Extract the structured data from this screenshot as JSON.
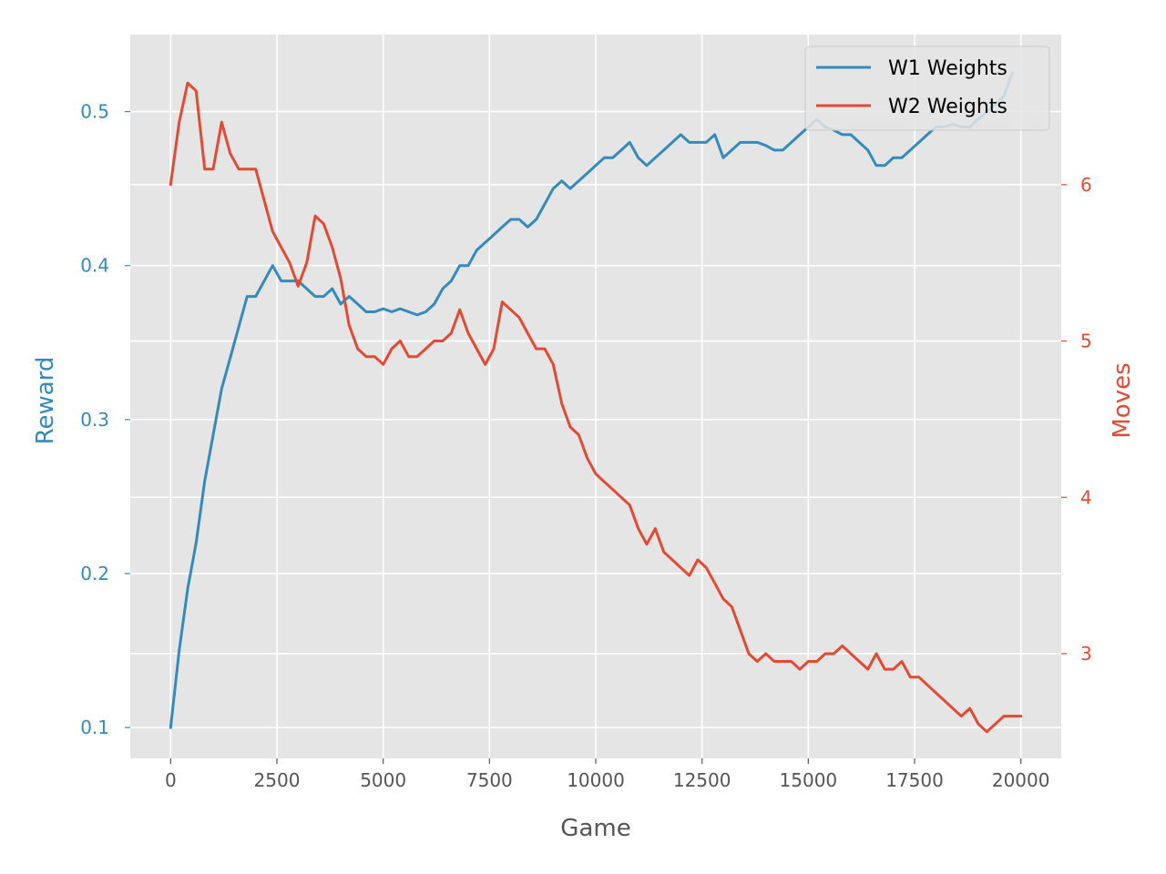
{
  "chart_data": {
    "type": "line",
    "x_axis": {
      "label": "Game",
      "ticks": [
        0,
        2500,
        5000,
        7500,
        10000,
        12500,
        15000,
        17500,
        20000
      ],
      "tick_labels": [
        "0",
        "2500",
        "5000",
        "7500",
        "10000",
        "12500",
        "15000",
        "17500",
        "20000"
      ],
      "range": [
        -950,
        20950
      ]
    },
    "y_left": {
      "label": "Reward",
      "ticks": [
        0.1,
        0.2,
        0.3,
        0.4,
        0.5
      ],
      "tick_labels": [
        "0.1",
        "0.2",
        "0.3",
        "0.4",
        "0.5"
      ],
      "range": [
        0.08,
        0.55
      ],
      "color": "#348ABD"
    },
    "y_right": {
      "label": "Moves",
      "ticks": [
        3,
        4,
        5,
        6
      ],
      "tick_labels": [
        "3",
        "4",
        "5",
        "6"
      ],
      "range": [
        2.33,
        6.96
      ],
      "color": "#E24A33"
    },
    "grid": true,
    "background": "#E5E5E5",
    "legend": {
      "placement": "top-right"
    },
    "series": [
      {
        "name": "W1 Weights",
        "axis": "left",
        "color": "#348ABD",
        "x": [
          0,
          200,
          400,
          600,
          800,
          1000,
          1200,
          1400,
          1600,
          1800,
          2000,
          2200,
          2400,
          2600,
          2800,
          3000,
          3200,
          3400,
          3600,
          3800,
          4000,
          4200,
          4400,
          4600,
          4800,
          5000,
          5200,
          5400,
          5600,
          5800,
          6000,
          6200,
          6400,
          6600,
          6800,
          7000,
          7200,
          7400,
          7600,
          7800,
          8000,
          8200,
          8400,
          8600,
          8800,
          9000,
          9200,
          9400,
          9600,
          9800,
          10000,
          10200,
          10400,
          10600,
          10800,
          11000,
          11200,
          11400,
          11600,
          11800,
          12000,
          12200,
          12400,
          12600,
          12800,
          13000,
          13200,
          13400,
          13600,
          13800,
          14000,
          14200,
          14400,
          14600,
          14800,
          15000,
          15200,
          15400,
          15600,
          15800,
          16000,
          16200,
          16400,
          16600,
          16800,
          17000,
          17200,
          17400,
          17600,
          17800,
          18000,
          18200,
          18400,
          18600,
          18800,
          19000,
          19200,
          19400,
          19600,
          19800
        ],
        "values": [
          0.1,
          0.15,
          0.19,
          0.22,
          0.26,
          0.29,
          0.32,
          0.34,
          0.36,
          0.38,
          0.38,
          0.39,
          0.4,
          0.39,
          0.39,
          0.39,
          0.385,
          0.38,
          0.38,
          0.385,
          0.375,
          0.38,
          0.375,
          0.37,
          0.37,
          0.372,
          0.37,
          0.372,
          0.37,
          0.368,
          0.37,
          0.375,
          0.385,
          0.39,
          0.4,
          0.4,
          0.41,
          0.415,
          0.42,
          0.425,
          0.43,
          0.43,
          0.425,
          0.43,
          0.44,
          0.45,
          0.455,
          0.45,
          0.455,
          0.46,
          0.465,
          0.47,
          0.47,
          0.475,
          0.48,
          0.47,
          0.465,
          0.47,
          0.475,
          0.48,
          0.485,
          0.48,
          0.48,
          0.48,
          0.485,
          0.47,
          0.475,
          0.48,
          0.48,
          0.48,
          0.478,
          0.475,
          0.475,
          0.48,
          0.485,
          0.49,
          0.495,
          0.49,
          0.488,
          0.485,
          0.485,
          0.48,
          0.475,
          0.465,
          0.465,
          0.47,
          0.47,
          0.475,
          0.48,
          0.485,
          0.49,
          0.49,
          0.492,
          0.49,
          0.49,
          0.495,
          0.5,
          0.505,
          0.51,
          0.525
        ]
      },
      {
        "name": "W2 Weights",
        "axis": "right",
        "color": "#E24A33",
        "x": [
          0,
          200,
          400,
          600,
          800,
          1000,
          1200,
          1400,
          1600,
          1800,
          2000,
          2200,
          2400,
          2600,
          2800,
          3000,
          3200,
          3400,
          3600,
          3800,
          4000,
          4200,
          4400,
          4600,
          4800,
          5000,
          5200,
          5400,
          5600,
          5800,
          6000,
          6200,
          6400,
          6600,
          6800,
          7000,
          7200,
          7400,
          7600,
          7800,
          8000,
          8200,
          8400,
          8600,
          8800,
          9000,
          9200,
          9400,
          9600,
          9800,
          10000,
          10200,
          10400,
          10600,
          10800,
          11000,
          11200,
          11400,
          11600,
          11800,
          12000,
          12200,
          12400,
          12600,
          12800,
          13000,
          13200,
          13400,
          13600,
          13800,
          14000,
          14200,
          14400,
          14600,
          14800,
          15000,
          15200,
          15400,
          15600,
          15800,
          16000,
          16200,
          16400,
          16600,
          16800,
          17000,
          17200,
          17400,
          17600,
          17800,
          18000,
          18200,
          18400,
          18600,
          18800,
          19000,
          19200,
          19400,
          19600,
          19800,
          20000
        ],
        "values": [
          6.0,
          6.4,
          6.65,
          6.6,
          6.1,
          6.1,
          6.4,
          6.2,
          6.1,
          6.1,
          6.1,
          5.9,
          5.7,
          5.6,
          5.5,
          5.35,
          5.5,
          5.8,
          5.75,
          5.6,
          5.4,
          5.1,
          4.95,
          4.9,
          4.9,
          4.85,
          4.95,
          5.0,
          4.9,
          4.9,
          4.95,
          5.0,
          5.0,
          5.05,
          5.2,
          5.05,
          4.95,
          4.85,
          4.95,
          5.25,
          5.2,
          5.15,
          5.05,
          4.95,
          4.95,
          4.85,
          4.6,
          4.45,
          4.4,
          4.25,
          4.15,
          4.1,
          4.05,
          4.0,
          3.95,
          3.8,
          3.7,
          3.8,
          3.65,
          3.6,
          3.55,
          3.5,
          3.6,
          3.55,
          3.45,
          3.35,
          3.3,
          3.15,
          3.0,
          2.95,
          3.0,
          2.95,
          2.95,
          2.95,
          2.9,
          2.95,
          2.95,
          3.0,
          3.0,
          3.05,
          3.0,
          2.95,
          2.9,
          3.0,
          2.9,
          2.9,
          2.95,
          2.85,
          2.85,
          2.8,
          2.75,
          2.7,
          2.65,
          2.6,
          2.65,
          2.55,
          2.5,
          2.55,
          2.6,
          2.6,
          2.6
        ]
      }
    ]
  }
}
